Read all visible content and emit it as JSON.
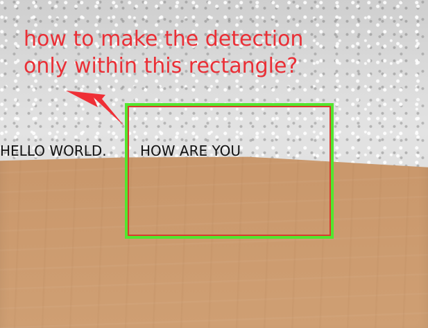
{
  "annotation": {
    "line1": "how to make the detection",
    "line2": "only within this rectangle?"
  },
  "scene": {
    "left_text": "HELLO WORLD.",
    "right_text": "HOW ARE YOU"
  },
  "colors": {
    "annotation_red": "#ea2f36",
    "rect_green": "#52e62f",
    "rect_red": "#d83b2f",
    "wall": "#d7d7d7",
    "table": "#c9976b"
  },
  "icons": {
    "arrow": "red-arrow-icon"
  }
}
